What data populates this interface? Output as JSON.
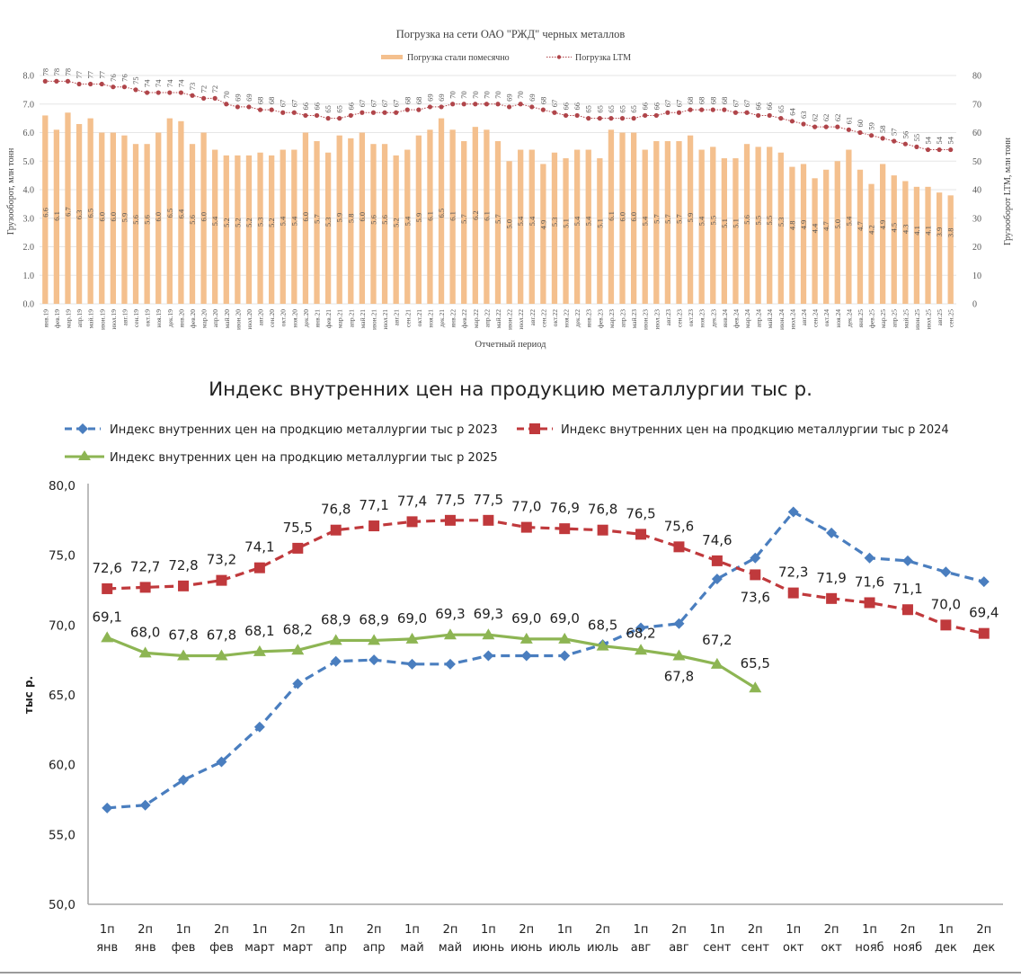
{
  "chart_data": [
    {
      "type": "bar",
      "title": "Погрузка на сети ОАО \"РЖД\" черных металлов",
      "xlabel": "Отчетный период",
      "ylabel": "Грузооборот, млн тонн",
      "y2label": "Грузооборот LTM, млн тонн",
      "ylim": [
        0,
        8
      ],
      "y2lim": [
        0,
        80
      ],
      "yticks": [
        "0.0",
        "1.0",
        "2.0",
        "3.0",
        "4.0",
        "5.0",
        "6.0",
        "7.0",
        "8.0"
      ],
      "y2ticks": [
        "0",
        "10",
        "20",
        "30",
        "40",
        "50",
        "60",
        "70",
        "80"
      ],
      "grid": true,
      "legend_position": "top-center",
      "categories": [
        "янв.19",
        "фев.19",
        "мар.19",
        "апр.19",
        "май.19",
        "июн.19",
        "июл.19",
        "авг.19",
        "сен.19",
        "окт.19",
        "ноя.19",
        "дек.19",
        "янв.20",
        "фев.20",
        "мар.20",
        "апр.20",
        "май.20",
        "июн.20",
        "июл.20",
        "авг.20",
        "сен.20",
        "окт.20",
        "ноя.20",
        "дек.20",
        "янв.21",
        "фев.21",
        "мар.21",
        "апр.21",
        "май.21",
        "июн.21",
        "июл.21",
        "авг.21",
        "сен.21",
        "окт.21",
        "ноя.21",
        "дек.21",
        "янв.22",
        "фев.22",
        "мар.22",
        "апр.22",
        "май.22",
        "июн.22",
        "июл.22",
        "авг.22",
        "сен.22",
        "окт.22",
        "ноя.22",
        "дек.22",
        "янв.23",
        "фев.23",
        "мар.23",
        "апр.23",
        "май.23",
        "июн.23",
        "июл.23",
        "авг.23",
        "сен.23",
        "окт.23",
        "ноя.23",
        "дек.23",
        "янв.24",
        "фев.24",
        "мар.24",
        "апр.24",
        "май.24",
        "июн.24",
        "июл.24",
        "авг.24",
        "сен.24",
        "окт.24",
        "ноя.24",
        "дек.24",
        "янв.25",
        "фев.25",
        "мар.25",
        "апр.25",
        "май.25",
        "июн.25",
        "июл.25",
        "авг.25",
        "сен.25"
      ],
      "series": [
        {
          "name": "Погрузка стали помесячно",
          "kind": "bar",
          "axis": "left",
          "color": "#f4c08e",
          "values": [
            6.6,
            6.1,
            6.7,
            6.3,
            6.5,
            6.0,
            6.0,
            5.9,
            5.6,
            5.6,
            6.0,
            6.5,
            6.4,
            5.6,
            6.0,
            5.4,
            5.2,
            5.2,
            5.2,
            5.3,
            5.2,
            5.4,
            5.4,
            6.0,
            5.7,
            5.3,
            5.9,
            5.8,
            6.0,
            5.6,
            5.6,
            5.2,
            5.4,
            5.9,
            6.1,
            6.5,
            6.1,
            5.7,
            6.2,
            6.1,
            5.7,
            5.0,
            5.4,
            5.4,
            4.9,
            5.3,
            5.1,
            5.4,
            5.4,
            5.1,
            6.1,
            6.0,
            6.0,
            5.4,
            5.7,
            5.7,
            5.7,
            5.9,
            5.4,
            5.5,
            5.1,
            5.1,
            5.6,
            5.5,
            5.5,
            5.3,
            4.8,
            4.9,
            4.4,
            4.7,
            5.0,
            5.4,
            4.7,
            4.2,
            4.9,
            4.5,
            4.3,
            4.1,
            4.1,
            3.9,
            3.8
          ]
        },
        {
          "name": "Погрузка LTM",
          "kind": "line",
          "axis": "right",
          "color": "#b0454a",
          "values": [
            78,
            78,
            78,
            77,
            77,
            77,
            76,
            76,
            75,
            74,
            74,
            74,
            74,
            73,
            72,
            72,
            70,
            69,
            69,
            68,
            68,
            67,
            67,
            66,
            66,
            65,
            65,
            66,
            67,
            67,
            67,
            67,
            68,
            68,
            69,
            69,
            70,
            70,
            70,
            70,
            70,
            69,
            70,
            69,
            68,
            67,
            66,
            66,
            65,
            65,
            65,
            65,
            65,
            66,
            66,
            67,
            67,
            68,
            68,
            68,
            68,
            67,
            67,
            66,
            66,
            65,
            64,
            63,
            62,
            62,
            62,
            61,
            60,
            59,
            58,
            57,
            56,
            55,
            54,
            54,
            54
          ]
        }
      ]
    },
    {
      "type": "line",
      "title": "Индекс внутренних цен на продукцию металлургии тыс р.",
      "xlabel": "",
      "ylabel": "тыс р.",
      "ylim": [
        50,
        80
      ],
      "yticks": [
        "50,0",
        "55,0",
        "60,0",
        "65,0",
        "70,0",
        "75,0",
        "80,0"
      ],
      "grid": false,
      "legend_position": "top",
      "categories": [
        [
          "1п",
          "янв"
        ],
        [
          "2п",
          "янв"
        ],
        [
          "1п",
          "фев"
        ],
        [
          "2п",
          "фев"
        ],
        [
          "1п",
          "март"
        ],
        [
          "2п",
          "март"
        ],
        [
          "1п",
          "апр"
        ],
        [
          "2п",
          "апр"
        ],
        [
          "1п",
          "май"
        ],
        [
          "2п",
          "май"
        ],
        [
          "1п",
          "июнь"
        ],
        [
          "2п",
          "июнь"
        ],
        [
          "1п",
          "июль"
        ],
        [
          "2п",
          "июль"
        ],
        [
          "1п",
          "авг"
        ],
        [
          "2п",
          "авг"
        ],
        [
          "1п",
          "сент"
        ],
        [
          "2п",
          "сент"
        ],
        [
          "1п",
          "окт"
        ],
        [
          "2п",
          "окт"
        ],
        [
          "1п",
          "нояб"
        ],
        [
          "2п",
          "нояб"
        ],
        [
          "1п",
          "дек"
        ],
        [
          "2п",
          "дек"
        ]
      ],
      "series": [
        {
          "name": "Индекс внутренних цен на продкцию металлургии тыс р 2023",
          "color": "#4a7ebf",
          "marker": "diamond",
          "dash": true,
          "labels": false,
          "values": [
            56.9,
            57.1,
            58.9,
            60.2,
            62.7,
            65.8,
            67.4,
            67.5,
            67.2,
            67.2,
            67.8,
            67.8,
            67.8,
            68.6,
            69.8,
            70.1,
            73.3,
            74.8,
            78.1,
            76.6,
            74.8,
            74.6,
            73.8,
            73.1
          ]
        },
        {
          "name": "Индекс внутренних цен на продкцию металлургии тыс р 2024",
          "color": "#c0393c",
          "marker": "square",
          "dash": true,
          "labels": true,
          "values": [
            72.6,
            72.7,
            72.8,
            73.2,
            74.1,
            75.5,
            76.8,
            77.1,
            77.4,
            77.5,
            77.5,
            77.0,
            76.9,
            76.8,
            76.5,
            75.6,
            74.6,
            73.6,
            72.3,
            71.9,
            71.6,
            71.1,
            70.0,
            69.4
          ]
        },
        {
          "name": "Индекс внутренних цен на продкцию металлургии тыс р 2025",
          "color": "#8db553",
          "marker": "triangle",
          "dash": false,
          "labels": true,
          "values": [
            69.1,
            68.0,
            67.8,
            67.8,
            68.1,
            68.2,
            68.9,
            68.9,
            69.0,
            69.3,
            69.3,
            69.0,
            69.0,
            68.5,
            68.2,
            67.8,
            67.2,
            65.5
          ]
        }
      ]
    }
  ]
}
